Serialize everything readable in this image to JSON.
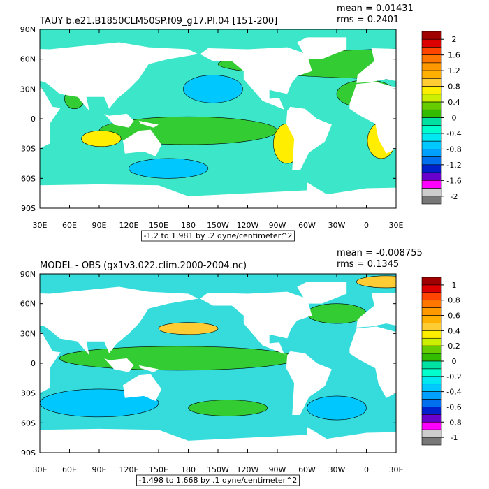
{
  "panels": [
    {
      "title": "TAUY b.e21.B1850CLM50SP.f09_g17.PI.04 [151-200]",
      "mean": "mean = 0.01431",
      "rms": "rms = 0.2401",
      "lat_labels": [
        "90N",
        "60N",
        "30N",
        "0",
        "30S",
        "60S",
        "90S"
      ],
      "lon_labels": [
        "30E",
        "60E",
        "90E",
        "120E",
        "150E",
        "180",
        "150W",
        "120W",
        "90W",
        "60W",
        "30W",
        "0",
        "30E"
      ],
      "contour_info": "-1.2 to 1.981 by .2 dyne/centimeter^2",
      "colorbar": {
        "labels": [
          "2",
          "1.6",
          "1.2",
          "0.8",
          "0.4",
          "0",
          "-0.4",
          "-0.8",
          "-1.2",
          "-1.6",
          "-2"
        ],
        "colors": [
          "#a00000",
          "#dd0000",
          "#ff4400",
          "#ff7700",
          "#ff9900",
          "#ffb000",
          "#ffcc33",
          "#ffee00",
          "#ccee00",
          "#66cc00",
          "#33bb00",
          "#00e0a0",
          "#00ffcc",
          "#00e8f0",
          "#00c8ff",
          "#00a0ff",
          "#0070ee",
          "#0022cc",
          "#6a00cc",
          "#ff00ff",
          "#cccccc",
          "#777777"
        ]
      }
    },
    {
      "title": "MODEL - OBS (gx1v3.022.clim.2000-2004.nc)",
      "mean": "mean = -0.008755",
      "rms": "rms = 0.1345",
      "lat_labels": [
        "90N",
        "60N",
        "30N",
        "0",
        "30S",
        "60S",
        "90S"
      ],
      "lon_labels": [
        "30E",
        "60E",
        "90E",
        "120E",
        "150E",
        "180",
        "150W",
        "120W",
        "90W",
        "60W",
        "30W",
        "0",
        "30E"
      ],
      "contour_info": "-1.498 to 1.668 by .1 dyne/centimeter^2",
      "colorbar": {
        "labels": [
          "1",
          "0.8",
          "0.6",
          "0.4",
          "0.2",
          "0",
          "-0.2",
          "-0.4",
          "-0.6",
          "-0.8",
          "-1"
        ],
        "colors": [
          "#a00000",
          "#dd0000",
          "#ff4400",
          "#ff7700",
          "#ff9900",
          "#ffb000",
          "#ffcc33",
          "#ffee00",
          "#ccee00",
          "#66cc00",
          "#33bb00",
          "#00e0a0",
          "#00ffcc",
          "#00e8f0",
          "#00c8ff",
          "#00a0ff",
          "#0070ee",
          "#0022cc",
          "#6a00cc",
          "#ff00ff",
          "#cccccc",
          "#777777"
        ]
      }
    }
  ]
}
